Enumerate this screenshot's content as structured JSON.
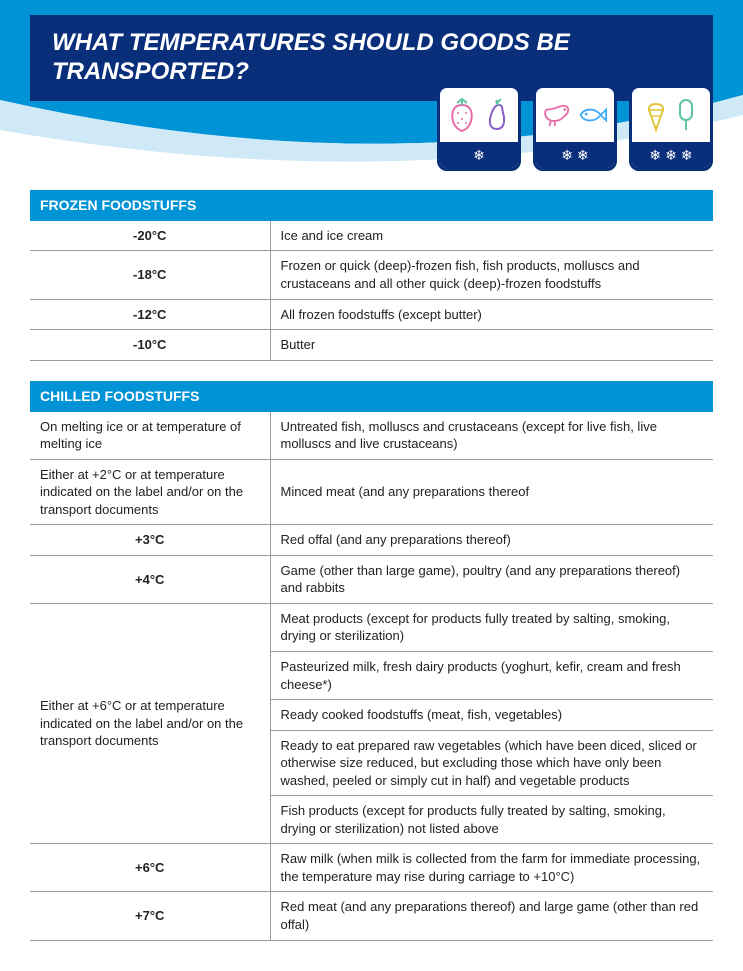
{
  "colors": {
    "brand_blue": "#0a2f7a",
    "accent_blue": "#0093d6",
    "white": "#ffffff",
    "rule": "#9a9a9a",
    "text": "#222222",
    "curve_light": "#cfeaf6",
    "curve_mid": "#0093d6",
    "fruit_pink": "#e86aa6",
    "veg_purple": "#8a5fc6",
    "shrimp_pink": "#e86aa6",
    "fish_blue": "#3fa9f5",
    "ice_yellow": "#e0c53a",
    "ice_green": "#5cc59b"
  },
  "title": "WHAT TEMPERATURES SHOULD GOODS BE TRANSPORTED?",
  "icon_cards": [
    {
      "name": "fruit-veg-card",
      "snowflakes": 1,
      "icons": [
        "strawberry",
        "eggplant"
      ]
    },
    {
      "name": "seafood-card",
      "snowflakes": 2,
      "icons": [
        "shrimp",
        "fish"
      ]
    },
    {
      "name": "icecream-card",
      "snowflakes": 3,
      "icons": [
        "ice-cream-cone",
        "ice-cream-bar"
      ]
    }
  ],
  "sections": [
    {
      "header": "FROZEN FOODSTUFFS",
      "rows": [
        {
          "temp": "-20°C",
          "align": "center",
          "items": [
            "Ice and ice cream"
          ]
        },
        {
          "temp": "-18°C",
          "align": "center",
          "items": [
            "Frozen or quick (deep)-frozen fish, fish products, molluscs and crustaceans and all other quick (deep)-frozen foodstuffs"
          ]
        },
        {
          "temp": "-12°C",
          "align": "center",
          "items": [
            "All frozen foodstuffs (except butter)"
          ]
        },
        {
          "temp": "-10°C",
          "align": "center",
          "items": [
            "Butter"
          ]
        }
      ]
    },
    {
      "header": "CHILLED FOODSTUFFS",
      "rows": [
        {
          "temp": "On melting ice or at temperature of melting ice",
          "align": "left",
          "items": [
            "Untreated fish, molluscs and crustaceans (except for live fish, live molluscs and live crustaceans)"
          ]
        },
        {
          "temp": "Either at +2°C or at temperature indicated on the label and/or on the transport documents",
          "align": "left",
          "items": [
            "Minced meat (and any preparations thereof"
          ]
        },
        {
          "temp": "+3°C",
          "align": "center",
          "items": [
            "Red offal (and any preparations thereof)"
          ]
        },
        {
          "temp": "+4°C",
          "align": "center",
          "items": [
            "Game (other than large game), poultry (and any preparations thereof) and rabbits"
          ]
        },
        {
          "temp": "Either at +6°C or at temperature indicated on the label and/or on the transport documents",
          "align": "left",
          "items": [
            "Meat products (except for products fully treated by salting, smoking, drying or sterilization)",
            "Pasteurized milk, fresh dairy products (yoghurt, kefir, cream and fresh cheese*)",
            "Ready cooked foodstuffs (meat, fish, vegetables)",
            "Ready to eat prepared raw vegetables (which have been diced, sliced or otherwise size reduced, but excluding those which have only been washed, peeled or simply cut in half) and vegetable products",
            "Fish products (except for products fully treated by salting, smoking, drying or sterilization) not listed above"
          ]
        },
        {
          "temp": "+6°C",
          "align": "center",
          "items": [
            "Raw milk (when milk is collected from the farm for immediate processing, the temperature may rise during carriage to +10°C)"
          ]
        },
        {
          "temp": "+7°C",
          "align": "center",
          "items": [
            "Red meat (and any preparations thereof) and large game (other than red offal)"
          ]
        }
      ]
    }
  ]
}
